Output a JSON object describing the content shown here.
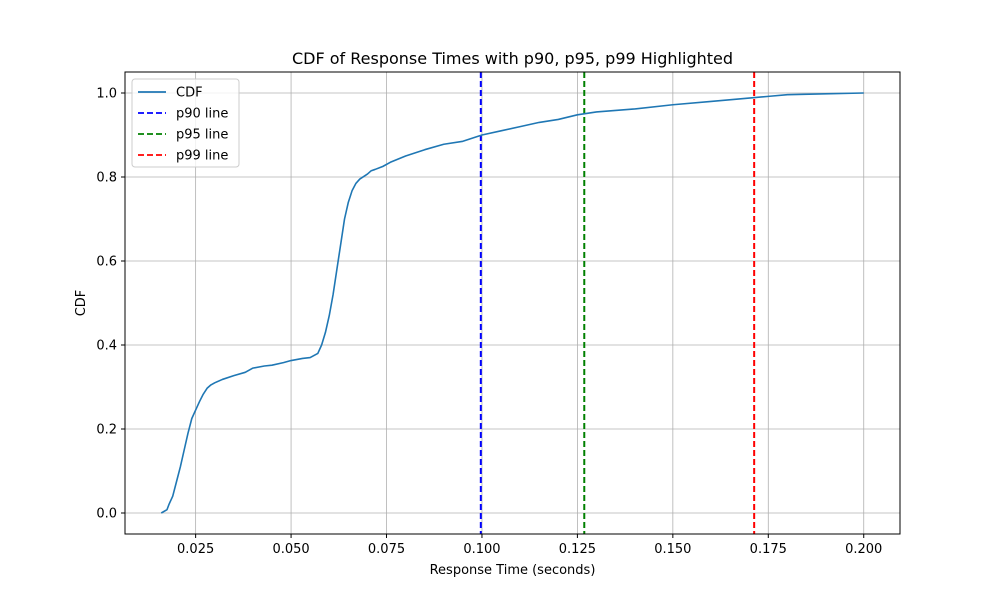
{
  "chart_data": {
    "type": "line",
    "title": "CDF of Response Times with p90, p95, p99 Highlighted",
    "xlabel": "Response Time (seconds)",
    "ylabel": "CDF",
    "xlim": [
      0.0065,
      0.2095
    ],
    "ylim": [
      -0.05,
      1.05
    ],
    "xticks": [
      0.025,
      0.05,
      0.075,
      0.1,
      0.125,
      0.15,
      0.175,
      0.2
    ],
    "xtick_labels": [
      "0.025",
      "0.050",
      "0.075",
      "0.100",
      "0.125",
      "0.150",
      "0.175",
      "0.200"
    ],
    "yticks": [
      0.0,
      0.2,
      0.4,
      0.6,
      0.8,
      1.0
    ],
    "ytick_labels": [
      "0.0",
      "0.2",
      "0.4",
      "0.6",
      "0.8",
      "1.0"
    ],
    "grid": true,
    "legend_position": "top-left",
    "series": [
      {
        "name": "CDF",
        "color": "#1f77b4",
        "x": [
          0.016,
          0.0175,
          0.018,
          0.019,
          0.02,
          0.021,
          0.022,
          0.023,
          0.024,
          0.025,
          0.026,
          0.027,
          0.028,
          0.029,
          0.03,
          0.032,
          0.035,
          0.038,
          0.04,
          0.043,
          0.045,
          0.048,
          0.05,
          0.053,
          0.055,
          0.057,
          0.058,
          0.059,
          0.06,
          0.061,
          0.062,
          0.063,
          0.064,
          0.065,
          0.066,
          0.067,
          0.068,
          0.069,
          0.07,
          0.071,
          0.072,
          0.074,
          0.076,
          0.08,
          0.085,
          0.09,
          0.095,
          0.1,
          0.105,
          0.11,
          0.115,
          0.12,
          0.125,
          0.13,
          0.14,
          0.15,
          0.16,
          0.17,
          0.175,
          0.18,
          0.19,
          0.2
        ],
        "y": [
          0.0,
          0.008,
          0.02,
          0.04,
          0.075,
          0.11,
          0.15,
          0.19,
          0.225,
          0.245,
          0.265,
          0.283,
          0.297,
          0.305,
          0.31,
          0.318,
          0.327,
          0.335,
          0.345,
          0.35,
          0.352,
          0.358,
          0.363,
          0.368,
          0.37,
          0.38,
          0.4,
          0.43,
          0.47,
          0.52,
          0.58,
          0.64,
          0.7,
          0.74,
          0.768,
          0.785,
          0.795,
          0.801,
          0.807,
          0.815,
          0.818,
          0.825,
          0.835,
          0.85,
          0.865,
          0.878,
          0.885,
          0.9,
          0.91,
          0.92,
          0.93,
          0.937,
          0.948,
          0.955,
          0.962,
          0.972,
          0.98,
          0.988,
          0.992,
          0.996,
          0.998,
          1.0
        ]
      }
    ],
    "vlines": [
      {
        "name": "p90 line",
        "x": 0.0997,
        "color": "#0000ff"
      },
      {
        "name": "p95 line",
        "x": 0.1268,
        "color": "#008000"
      },
      {
        "name": "p99 line",
        "x": 0.1713,
        "color": "#ff0000"
      }
    ]
  }
}
